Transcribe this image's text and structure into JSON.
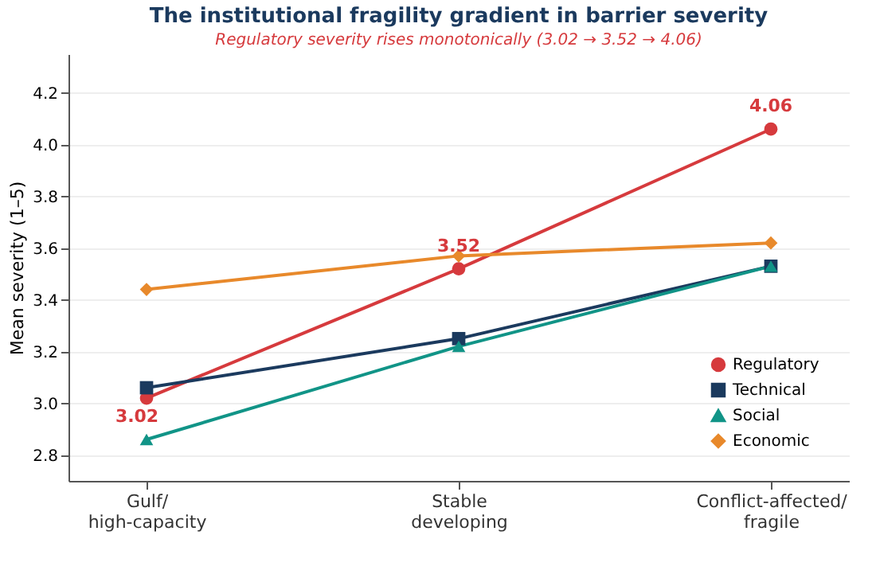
{
  "chart_data": {
    "type": "line",
    "title": "The institutional fragility gradient in barrier severity",
    "subtitle": "Regulatory severity rises monotonically (3.02 → 3.52 → 4.06)",
    "ylabel": "Mean severity (1–5)",
    "categories": [
      "Gulf/\nhigh-capacity",
      "Stable\ndeveloping",
      "Conflict-affected/\nfragile"
    ],
    "series": [
      {
        "name": "Regulatory",
        "color": "#d63a3d",
        "marker": "circle",
        "values": [
          3.02,
          3.52,
          4.06
        ],
        "value_labels": [
          "3.02",
          "3.52",
          "4.06"
        ]
      },
      {
        "name": "Technical",
        "color": "#1b3a5e",
        "marker": "square",
        "values": [
          3.06,
          3.25,
          3.53
        ]
      },
      {
        "name": "Social",
        "color": "#119487",
        "marker": "triangle",
        "values": [
          2.86,
          3.22,
          3.53
        ]
      },
      {
        "name": "Economic",
        "color": "#e8892b",
        "marker": "diamond",
        "values": [
          3.44,
          3.57,
          3.62
        ]
      }
    ],
    "ylim": [
      2.7,
      4.35
    ],
    "yticks": [
      2.8,
      {
        "value": 3,
        "label": "3.0"
      },
      3.2,
      3.4,
      3.6,
      3.8,
      {
        "value": 4,
        "label": "4.0"
      },
      4.2
    ],
    "grid": "y",
    "legend": "bottom right",
    "line_style": "solid"
  }
}
